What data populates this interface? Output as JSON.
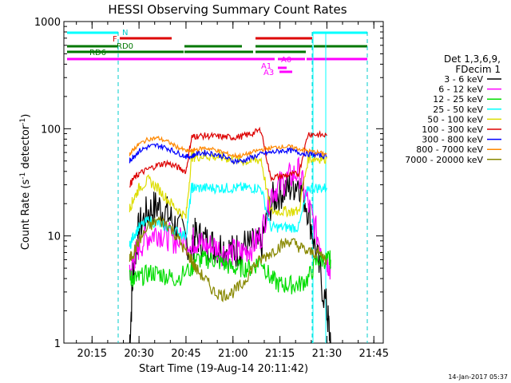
{
  "chart_data": {
    "type": "line",
    "title": "HESSI Observing Summary Count Rates",
    "xlabel": "Start Time (19-Aug-14 20:11:42)",
    "ylabel_main": "Count Rate (s",
    "ylabel_sup1": "-1",
    "ylabel_mid": " detector",
    "ylabel_sup2": "-1",
    "ylabel_end": ")",
    "yscale": "log",
    "ylim": [
      1,
      1000
    ],
    "xlim_minutes": [
      20.1,
      21.8
    ],
    "xticks": [
      "20:15",
      "20:30",
      "20:45",
      "21:00",
      "21:15",
      "21:30",
      "21:45"
    ],
    "xtick_minutes": [
      20.25,
      20.5,
      20.75,
      21.0,
      21.25,
      21.5,
      21.75
    ],
    "yticks": [
      "1",
      "10",
      "100",
      "1000"
    ],
    "yticks_values": [
      1,
      10,
      100,
      1000
    ],
    "legend": {
      "placement": "right",
      "header_lines": [
        "Det 1,3,6,9,",
        "FDecim 1"
      ],
      "entries": [
        {
          "name": "3 - 6 keV",
          "color": "#000000"
        },
        {
          "name": "6 - 12 keV",
          "color": "#ff00ff"
        },
        {
          "name": "12 - 25 keV",
          "color": "#00dd00"
        },
        {
          "name": "25 - 50 keV",
          "color": "#00ffff"
        },
        {
          "name": "50 - 100 keV",
          "color": "#dddd00"
        },
        {
          "name": "100 - 300 keV",
          "color": "#dd0000"
        },
        {
          "name": "300 - 800 keV",
          "color": "#0000ff"
        },
        {
          "name": "800 - 7000 keV",
          "color": "#ff8800"
        },
        {
          "name": "7000 - 20000 keV",
          "color": "#888800"
        }
      ]
    },
    "flag_labels": {
      "N": "N",
      "F": "F",
      "RD0": "RD0",
      "RD6": "RD6",
      "A0": "A0",
      "A1": "A1",
      "A3": "A3"
    },
    "series": [
      {
        "name": "3 - 6 keV",
        "color": "#000000",
        "x": [
          20.45,
          20.47,
          20.5,
          20.55,
          20.6,
          20.65,
          20.7,
          20.78,
          20.8,
          20.85,
          20.9,
          20.95,
          21.0,
          21.05,
          21.1,
          21.15,
          21.2,
          21.25,
          21.3,
          21.35,
          21.4,
          21.45,
          21.5,
          21.52
        ],
        "values": [
          1,
          5,
          12,
          17,
          19,
          16,
          12,
          8,
          10,
          9,
          8,
          8,
          7,
          8,
          8,
          8,
          20,
          26,
          28,
          33,
          18,
          6,
          2,
          1
        ]
      },
      {
        "name": "6 - 12 keV",
        "color": "#ff00ff",
        "x": [
          20.45,
          20.47,
          20.5,
          20.55,
          20.6,
          20.65,
          20.7,
          20.78,
          20.8,
          20.85,
          20.9,
          20.95,
          21.0,
          21.05,
          21.1,
          21.15,
          21.2,
          21.25,
          21.3,
          21.35,
          21.4,
          21.45,
          21.5,
          21.52
        ],
        "values": [
          4,
          6,
          8,
          10,
          11,
          10,
          9,
          9,
          9,
          8,
          8,
          7,
          7,
          7,
          8,
          10,
          25,
          30,
          35,
          40,
          20,
          10,
          6,
          5
        ]
      },
      {
        "name": "12 - 25 keV",
        "color": "#00dd00",
        "x": [
          20.45,
          20.47,
          20.5,
          20.55,
          20.6,
          20.65,
          20.7,
          20.78,
          20.8,
          20.85,
          20.9,
          20.95,
          21.0,
          21.05,
          21.1,
          21.15,
          21.2,
          21.25,
          21.3,
          21.35,
          21.4,
          21.45,
          21.5,
          21.52
        ],
        "values": [
          4,
          4,
          4,
          4.5,
          4.5,
          4.2,
          4,
          5,
          6,
          6,
          6,
          5.5,
          5,
          5,
          5,
          6,
          4,
          3.5,
          3.5,
          3.5,
          4,
          6,
          6,
          6
        ]
      },
      {
        "name": "25 - 50 keV",
        "color": "#00ffff",
        "x": [
          20.45,
          20.47,
          20.5,
          20.55,
          20.6,
          20.65,
          20.7,
          20.75,
          20.78,
          20.8,
          20.85,
          20.9,
          20.95,
          21.0,
          21.05,
          21.1,
          21.15,
          21.2,
          21.25,
          21.3,
          21.35,
          21.4,
          21.45,
          21.5
        ],
        "values": [
          8,
          10,
          12,
          14,
          13,
          12,
          11,
          10,
          28,
          28,
          28,
          28,
          28,
          28,
          28,
          28,
          28,
          12,
          12,
          12,
          12,
          28,
          28,
          28
        ]
      },
      {
        "name": "50 - 100 keV",
        "color": "#dddd00",
        "x": [
          20.45,
          20.47,
          20.5,
          20.55,
          20.6,
          20.65,
          20.7,
          20.75,
          20.78,
          20.8,
          20.85,
          20.9,
          20.95,
          21.0,
          21.05,
          21.1,
          21.15,
          21.2,
          21.25,
          21.3,
          21.35,
          21.4,
          21.45,
          21.5
        ],
        "values": [
          18,
          22,
          28,
          33,
          28,
          22,
          18,
          15,
          55,
          55,
          56,
          55,
          54,
          52,
          50,
          50,
          52,
          17,
          17,
          17,
          17,
          53,
          53,
          53
        ]
      },
      {
        "name": "100 - 300 keV",
        "color": "#dd0000",
        "x": [
          20.45,
          20.47,
          20.5,
          20.55,
          20.6,
          20.65,
          20.7,
          20.75,
          20.78,
          20.8,
          20.85,
          20.9,
          20.95,
          21.0,
          21.05,
          21.1,
          21.15,
          21.2,
          21.25,
          21.3,
          21.35,
          21.4,
          21.45,
          21.5
        ],
        "values": [
          30,
          34,
          38,
          42,
          46,
          48,
          44,
          40,
          84,
          85,
          86,
          85,
          84,
          83,
          85,
          90,
          98,
          35,
          36,
          37,
          38,
          90,
          88,
          86
        ]
      },
      {
        "name": "300 - 800 keV",
        "color": "#0000ff",
        "x": [
          20.45,
          20.47,
          20.5,
          20.55,
          20.6,
          20.65,
          20.7,
          20.75,
          20.78,
          20.8,
          20.85,
          20.9,
          20.95,
          21.0,
          21.05,
          21.1,
          21.15,
          21.2,
          21.25,
          21.3,
          21.35,
          21.4,
          21.45,
          21.5
        ],
        "values": [
          50,
          55,
          62,
          68,
          70,
          66,
          60,
          55,
          55,
          58,
          60,
          58,
          55,
          50,
          50,
          54,
          58,
          60,
          62,
          63,
          60,
          58,
          57,
          55
        ]
      },
      {
        "name": "800 - 7000 keV",
        "color": "#ff8800",
        "x": [
          20.45,
          20.47,
          20.5,
          20.55,
          20.6,
          20.65,
          20.7,
          20.75,
          20.78,
          20.8,
          20.85,
          20.9,
          20.95,
          21.0,
          21.05,
          21.1,
          21.15,
          21.2,
          21.25,
          21.3,
          21.35,
          21.4,
          21.45,
          21.5
        ],
        "values": [
          58,
          64,
          72,
          80,
          82,
          76,
          68,
          62,
          62,
          64,
          66,
          64,
          60,
          56,
          56,
          60,
          64,
          66,
          68,
          68,
          65,
          62,
          60,
          58
        ]
      },
      {
        "name": "7000 - 20000 keV",
        "color": "#888800",
        "x": [
          20.45,
          20.47,
          20.5,
          20.55,
          20.6,
          20.65,
          20.7,
          20.75,
          20.78,
          20.8,
          20.85,
          20.9,
          20.95,
          21.0,
          21.05,
          21.1,
          21.15,
          21.2,
          21.25,
          21.3,
          21.35,
          21.4,
          21.45,
          21.5
        ],
        "values": [
          6,
          7,
          9,
          12,
          14,
          13,
          10,
          7,
          6,
          5,
          4,
          3,
          2.8,
          3,
          3.5,
          5,
          6,
          7,
          8,
          9,
          8,
          7,
          7,
          6
        ]
      }
    ]
  },
  "timestamp": "14-Jan-2017 05:37"
}
